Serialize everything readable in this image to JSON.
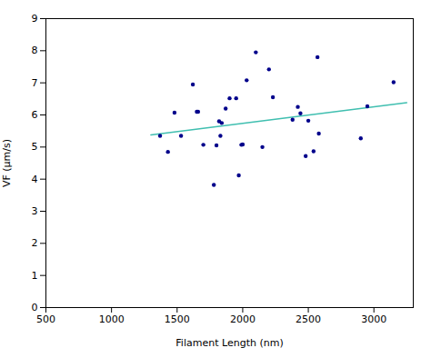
{
  "chart_data": {
    "type": "scatter",
    "xlabel": "Filament Length (nm)",
    "ylabel": "VF (μm/s)",
    "xlim": [
      500,
      3300
    ],
    "ylim": [
      0,
      9
    ],
    "xticks": [
      500,
      1000,
      1500,
      2000,
      2500,
      3000
    ],
    "yticks": [
      0,
      1,
      2,
      3,
      4,
      5,
      6,
      7,
      8,
      9
    ],
    "grid": false,
    "series": [
      {
        "type": "scatter",
        "color": "#00008B",
        "x": [
          1370,
          1430,
          1480,
          1530,
          1620,
          1650,
          1660,
          1700,
          1780,
          1800,
          1820,
          1830,
          1840,
          1870,
          1900,
          1950,
          1970,
          1990,
          2000,
          2030,
          2100,
          2150,
          2200,
          2230,
          2380,
          2420,
          2440,
          2480,
          2500,
          2540,
          2570,
          2580,
          2900,
          2950,
          3150
        ],
        "values": [
          5.35,
          4.85,
          6.07,
          5.35,
          6.95,
          6.1,
          6.1,
          5.07,
          3.82,
          5.05,
          5.8,
          5.35,
          5.75,
          6.2,
          6.52,
          6.52,
          4.12,
          5.07,
          5.08,
          7.08,
          7.95,
          5.0,
          7.42,
          6.55,
          5.85,
          6.25,
          6.05,
          4.72,
          5.82,
          4.87,
          7.8,
          5.42,
          5.27,
          6.27,
          7.02
        ]
      },
      {
        "type": "line",
        "color": "#40BFB0",
        "x": [
          1300,
          3250
        ],
        "values": [
          5.38,
          6.38
        ]
      }
    ]
  }
}
